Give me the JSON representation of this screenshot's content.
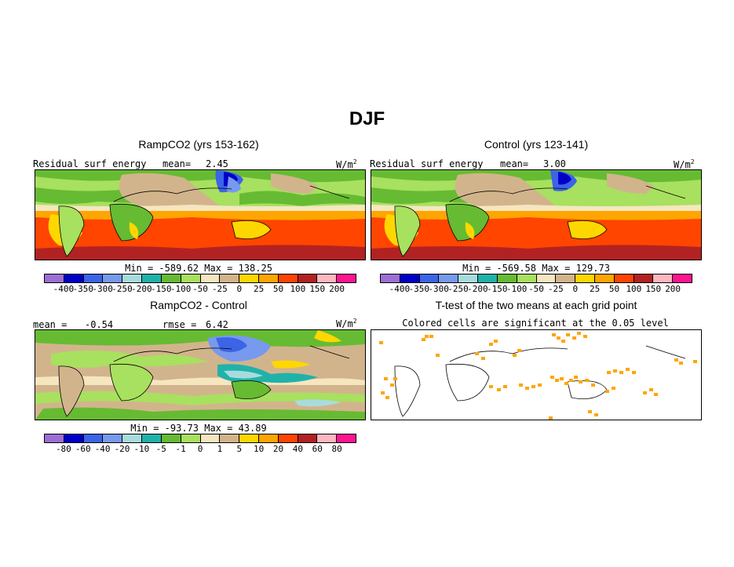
{
  "figure_title": "DJF",
  "panels": {
    "ramp": {
      "title": "RampCO2 (yrs 153-162)",
      "left_label": "Residual surf energy",
      "mean_label": "mean=",
      "mean_value": "2.45",
      "units": "W/m",
      "units_sup": "2",
      "stats": "Min = -589.62 Max = 138.25"
    },
    "control": {
      "title": "Control (yrs 123-141)",
      "left_label": "Residual surf energy",
      "mean_label": "mean=",
      "mean_value": "3.00",
      "units": "W/m",
      "units_sup": "2",
      "stats": "Min = -569.58 Max = 129.73"
    },
    "diff": {
      "title": "RampCO2 - Control",
      "mean_label": "mean =",
      "mean_value": "-0.54",
      "rmse_label": "rmse =",
      "rmse_value": "6.42",
      "units": "W/m",
      "units_sup": "2",
      "stats": "Min = -93.73 Max = 43.89"
    },
    "ttest": {
      "title": "T-test of the two means at each grid point",
      "subtitle": "Colored cells are significant at the 0.05 level"
    }
  },
  "colorbars": {
    "colors": [
      "#9b6fd6",
      "#0000c8",
      "#3c64e6",
      "#7799ee",
      "#a8dcdc",
      "#20b2aa",
      "#66bb33",
      "#a8e05f",
      "#f5e6c0",
      "#d2b48c",
      "#ffd700",
      "#ffa500",
      "#ff4500",
      "#b22222",
      "#ffb6c1",
      "#ff1493"
    ],
    "abs_ticks": [
      "-400",
      "-350",
      "-300",
      "-250",
      "-200",
      "-150",
      "-100",
      "-50",
      "-25",
      "0",
      "25",
      "50",
      "100",
      "150",
      "200"
    ],
    "diff_ticks": [
      "-80",
      "-60",
      "-40",
      "-20",
      "-10",
      "-5",
      "-1",
      "0",
      "1",
      "5",
      "10",
      "20",
      "40",
      "60",
      "80"
    ]
  },
  "ttest_color": "#ffa500"
}
